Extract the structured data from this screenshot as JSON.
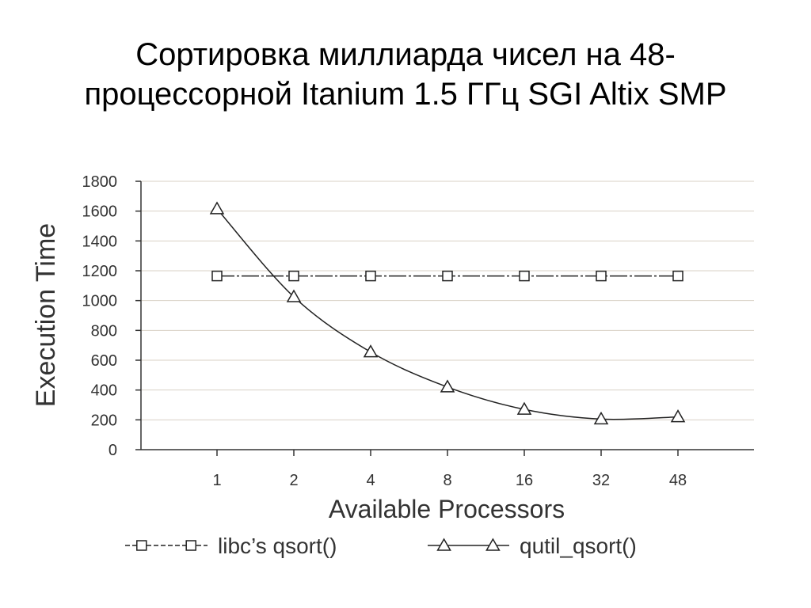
{
  "slide": {
    "title_line1": "Сортировка миллиарда чисел на 48-",
    "title_line2": "процессорной Itanium 1.5 ГГц SGI Altix SMP"
  },
  "chart_data": {
    "type": "line",
    "categories": [
      "1",
      "2",
      "4",
      "8",
      "16",
      "32",
      "48"
    ],
    "xlabel": "Available Processors",
    "ylabel": "Execution Time",
    "ylim": [
      0,
      1800
    ],
    "yticks": [
      0,
      200,
      400,
      600,
      800,
      1000,
      1200,
      1400,
      1600,
      1800
    ],
    "grid": true,
    "legend_position": "bottom",
    "series": [
      {
        "name": "libc’s qsort()",
        "marker": "square",
        "line_style": "dashed",
        "values": [
          1165,
          1165,
          1165,
          1165,
          1165,
          1165,
          1165
        ]
      },
      {
        "name": "qutil_qsort()",
        "marker": "triangle",
        "line_style": "solid",
        "values": [
          1615,
          1025,
          655,
          420,
          270,
          205,
          220
        ]
      }
    ]
  }
}
